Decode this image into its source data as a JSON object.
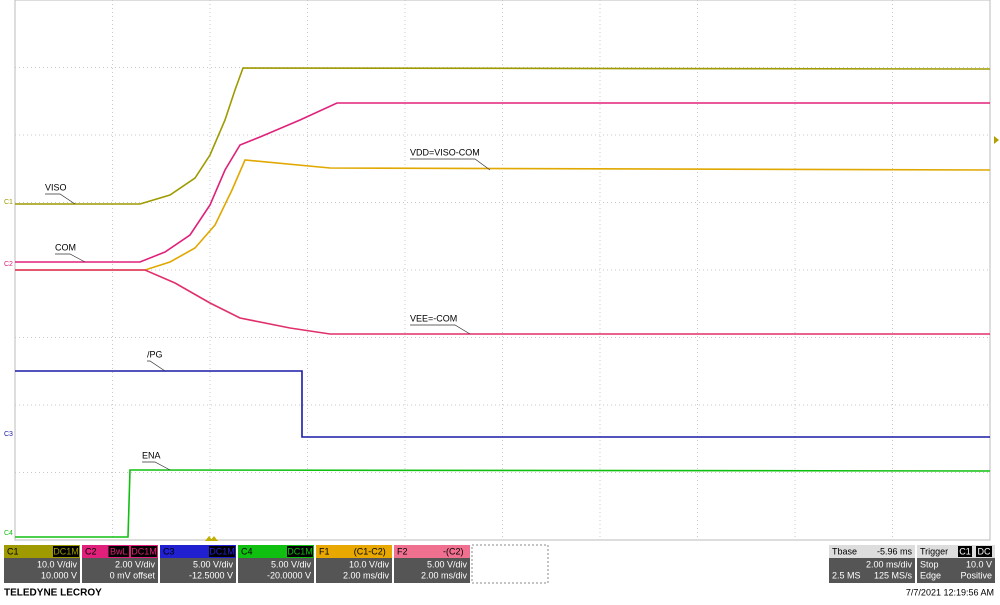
{
  "traces": {
    "labels": [
      "VISO",
      "COM",
      "VDD=VISO-COM",
      "VEE=-COM",
      "/PG",
      "ENA"
    ],
    "markers": [
      "C1",
      "C2",
      "C3",
      "C4"
    ]
  },
  "panels": [
    {
      "name": "C1",
      "tags": [
        "DC1M"
      ],
      "lines": [
        "10.0 V/div",
        "10.000 V"
      ]
    },
    {
      "name": "C2",
      "tags": [
        "BwL",
        "DC1M"
      ],
      "lines": [
        "2.00 V/div",
        "0 mV offset"
      ]
    },
    {
      "name": "C3",
      "tags": [
        "DC1M"
      ],
      "lines": [
        "5.00 V/div",
        "-12.5000 V"
      ]
    },
    {
      "name": "C4",
      "tags": [
        "DC1M"
      ],
      "lines": [
        "5.00 V/div",
        "-20.0000 V"
      ]
    },
    {
      "name": "F1",
      "tags": [
        "(C1-C2)"
      ],
      "lines": [
        "10.0 V/div",
        "2.00 ms/div"
      ]
    },
    {
      "name": "F2",
      "tags": [
        "-(C2)"
      ],
      "lines": [
        "5.00 V/div",
        "2.00 ms/div"
      ]
    }
  ],
  "timebase": {
    "name": "Tbase",
    "value": "-5.96 ms",
    "lines": [
      "2.00 ms/div",
      "2.5 MS",
      "125 MS/s"
    ]
  },
  "trigger": {
    "name": "Trigger",
    "tags": [
      "C1",
      "DC"
    ],
    "lines": [
      "Stop",
      "10.0 V",
      "Edge",
      "Positive"
    ]
  },
  "footer": {
    "brand": "TELEDYNE LECROY",
    "timestamp": "7/7/2021 12:19:56 AM"
  }
}
